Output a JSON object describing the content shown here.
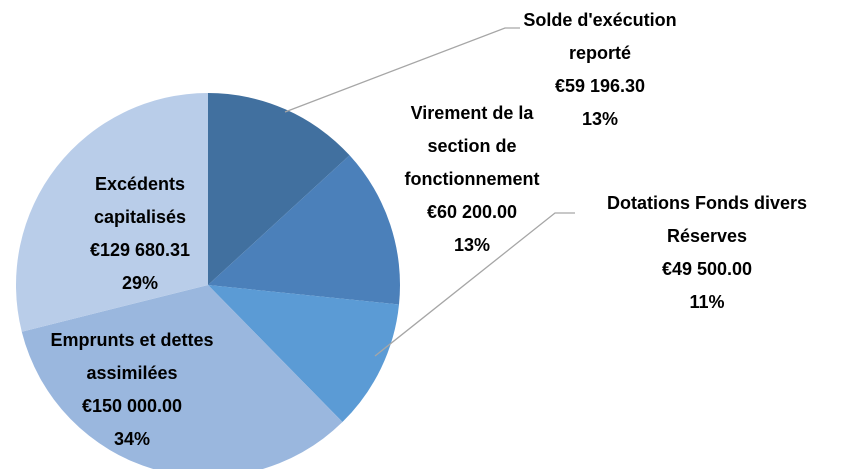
{
  "chart_data": {
    "type": "pie",
    "categories": [
      "Solde d'exécution reporté",
      "Virement de la section de fonctionnement",
      "Dotations Fonds divers Réserves",
      "Emprunts et dettes assimilées",
      "Excédents capitalisés"
    ],
    "values": [
      59196.3,
      60200.0,
      49500.0,
      150000.0,
      129680.31
    ],
    "value_labels": [
      "€59 196.30",
      "€60 200.00",
      "€49 500.00",
      "€150 000.00",
      "€129 680.31"
    ],
    "percents": [
      13,
      13,
      11,
      34,
      29
    ],
    "percent_labels": [
      "13%",
      "13%",
      "11%",
      "34%",
      "29%"
    ],
    "colors": [
      "#41709f",
      "#4b80ba",
      "#5b9bd5",
      "#9ab7de",
      "#b9cde9"
    ]
  }
}
